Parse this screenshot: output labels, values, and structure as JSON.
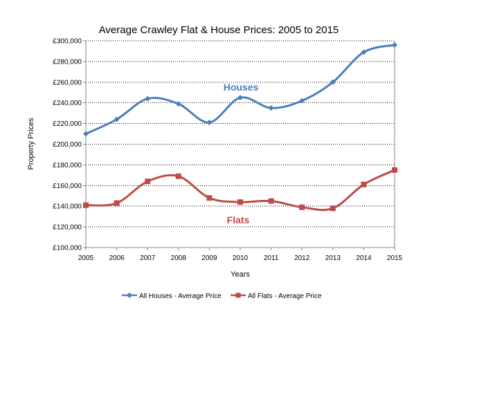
{
  "chart_data": {
    "type": "line",
    "title": "Average Crawley Flat & House Prices: 2005 to 2015",
    "xlabel": "Years",
    "ylabel": "Property Prices",
    "categories": [
      "2005",
      "2006",
      "2007",
      "2008",
      "2009",
      "2010",
      "2011",
      "2012",
      "2013",
      "2014",
      "2015"
    ],
    "ylim": [
      100000,
      300000
    ],
    "yticks": [
      100000,
      120000,
      140000,
      160000,
      180000,
      200000,
      220000,
      240000,
      260000,
      280000,
      300000
    ],
    "ytick_labels": [
      "£100,000",
      "£120,000",
      "£140,000",
      "£160,000",
      "£180,000",
      "£200,000",
      "£220,000",
      "£240,000",
      "£260,000",
      "£280,000",
      "£300,000"
    ],
    "grid": "horizontal dotted",
    "legend_position": "bottom",
    "series": [
      {
        "name": "All Houses -  Average Price",
        "color": "#4a7ebb",
        "marker": "diamond",
        "values": [
          210000,
          224000,
          244000,
          239000,
          221000,
          245000,
          235000,
          242000,
          260000,
          289000,
          296000
        ]
      },
      {
        "name": "All Flats - Average Price",
        "color": "#be4b48",
        "marker": "square",
        "values": [
          141000,
          143000,
          164000,
          169000,
          148000,
          144000,
          145000,
          139000,
          138000,
          161000,
          175000
        ]
      }
    ],
    "annotations": [
      {
        "text": "Houses",
        "color": "#4a7ebb"
      },
      {
        "text": "Flats",
        "color": "#be4b48"
      }
    ]
  }
}
